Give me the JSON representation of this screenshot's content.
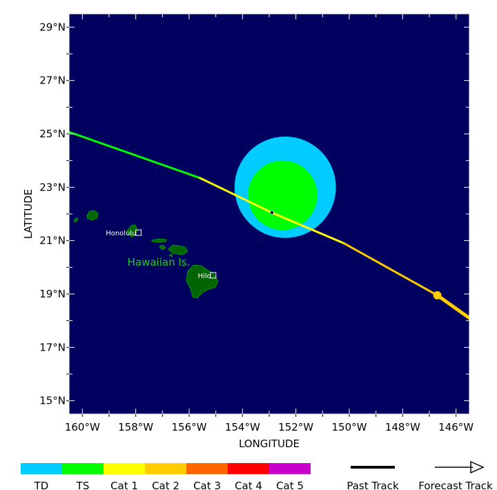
{
  "axes": {
    "xlabel": "LONGITUDE",
    "ylabel": "LATITUDE",
    "xlim": [
      -160.5,
      -145.5
    ],
    "ylim": [
      14.5,
      29.5
    ],
    "x_ticks": [
      -160,
      -158,
      -156,
      -154,
      -152,
      -150,
      -148,
      -146
    ],
    "x_tick_labels": [
      "160°W",
      "158°W",
      "156°W",
      "154°W",
      "152°W",
      "150°W",
      "148°W",
      "146°W"
    ],
    "y_ticks": [
      15,
      17,
      19,
      21,
      23,
      25,
      27,
      29
    ],
    "y_tick_labels": [
      "15°N",
      "17°N",
      "19°N",
      "21°N",
      "23°N",
      "25°N",
      "27°N",
      "29°N"
    ]
  },
  "map": {
    "ocean_color": "#00005f",
    "land_color": "#006400",
    "region_label": "Hawaiian Is.",
    "region_label_color": "#22cc22",
    "cities": [
      {
        "name": "Honolulu",
        "lon": -157.9,
        "lat": 21.3
      },
      {
        "name": "Hilo",
        "lon": -155.1,
        "lat": 19.7
      }
    ]
  },
  "storm": {
    "current_position": {
      "lon": -152.9,
      "lat": 22.05
    },
    "wind_fields": [
      {
        "category": "TD",
        "color": "#00ccff",
        "center_lon": -152.4,
        "center_lat": 23.0,
        "radius_deg": 1.9
      },
      {
        "category": "TS",
        "color": "#00ff00",
        "center_lon": -152.5,
        "center_lat": 22.7,
        "radius_deg": 1.3
      }
    ],
    "forecast_track": [
      {
        "lon": -162.0,
        "lat": 25.6,
        "category": "TS"
      },
      {
        "lon": -155.6,
        "lat": 23.35,
        "category": "TS"
      },
      {
        "lon": -152.9,
        "lat": 22.05,
        "category": "Cat 1"
      },
      {
        "lon": -150.2,
        "lat": 20.9,
        "category": "Cat 1"
      },
      {
        "lon": -146.7,
        "lat": 18.95,
        "category": "Cat 2"
      },
      {
        "lon": -145.5,
        "lat": 18.1,
        "category": "Cat 2"
      }
    ],
    "forecast_marker": {
      "lon": -146.7,
      "lat": 18.95,
      "category": "Cat 2"
    }
  },
  "legend": {
    "categories": [
      {
        "label": "TD",
        "color": "#00ccff"
      },
      {
        "label": "TS",
        "color": "#00ff00"
      },
      {
        "label": "Cat 1",
        "color": "#ffff00"
      },
      {
        "label": "Cat 2",
        "color": "#ffcc00"
      },
      {
        "label": "Cat 3",
        "color": "#ff6600"
      },
      {
        "label": "Cat 4",
        "color": "#ff0000"
      },
      {
        "label": "Cat 5",
        "color": "#cc00cc"
      }
    ],
    "past_track_label": "Past Track",
    "forecast_track_label": "Forecast Track"
  }
}
